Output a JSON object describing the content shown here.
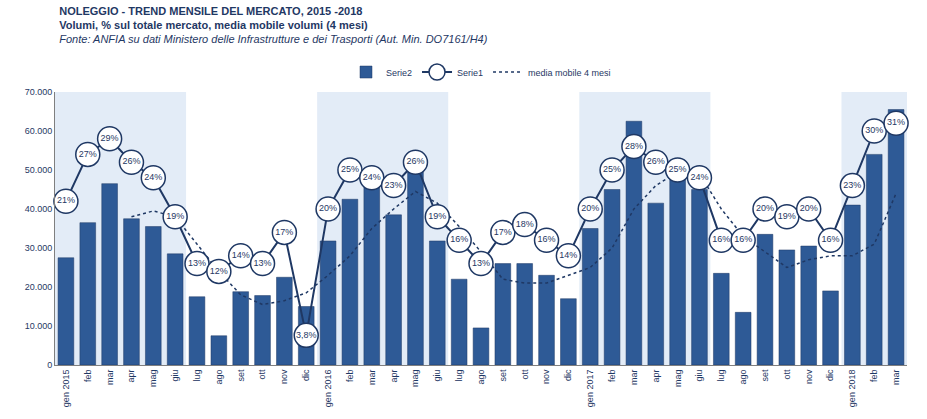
{
  "chart_data": {
    "type": "bar",
    "title": "NOLEGGIO - TREND MENSILE DEL MERCATO, 2015 -2018",
    "subtitle": "Volumi, % sul totale mercato, media mobile volumi (4 mesi)",
    "source": "Fonte: ANFIA su dati Ministero delle Infrastrutture e dei Trasporti (Aut. Min. DO7161/H4)",
    "categories": [
      "gen 2015",
      "feb",
      "mar",
      "apr",
      "mag",
      "giu",
      "lug",
      "ago",
      "set",
      "ott",
      "nov",
      "dic",
      "gen 2016",
      "feb",
      "mar",
      "apr",
      "mag",
      "giu",
      "lug",
      "ago",
      "set",
      "ott",
      "nov",
      "dic",
      "gen 2017",
      "feb",
      "mar",
      "apr",
      "mag",
      "giu",
      "lug",
      "ago",
      "set",
      "ott",
      "nov",
      "dic",
      "gen 2018",
      "feb",
      "mar"
    ],
    "ylim": [
      0,
      70000
    ],
    "yticks": [
      0,
      {
        "value": 10000,
        "label": "10.000"
      },
      {
        "value": 20000,
        "label": "20.000"
      },
      {
        "value": 30000,
        "label": "30.000"
      },
      {
        "value": 40000,
        "label": "40.000"
      },
      {
        "value": 50000,
        "label": "50.000"
      },
      {
        "value": 60000,
        "label": "60.000"
      },
      {
        "value": 70000,
        "label": "70.000"
      }
    ],
    "y2lim": [
      0,
      35
    ],
    "grid": false,
    "legend": "top",
    "data_labels": true,
    "series": [
      {
        "name": "Serie2",
        "type": "bar",
        "color": "#2e5a96",
        "values": [
          27500,
          36500,
          46500,
          37500,
          35500,
          28500,
          17500,
          7500,
          18800,
          17800,
          22500,
          15000,
          31800,
          42500,
          46000,
          38500,
          50000,
          31800,
          22000,
          9500,
          26000,
          26000,
          23000,
          17000,
          35000,
          45000,
          62500,
          41500,
          49000,
          45000,
          23500,
          13500,
          33500,
          29500,
          30500,
          19000,
          41000,
          54000,
          65500
        ]
      },
      {
        "name": "Serie1",
        "type": "line",
        "axis": "y2",
        "color": "#1f3864",
        "marker": "circle",
        "line_style": "solid",
        "values": [
          21,
          27,
          29,
          26,
          24,
          19,
          13,
          12,
          14,
          13,
          17,
          3.8,
          20,
          25,
          24,
          23,
          26,
          19,
          16,
          13,
          17,
          18,
          16,
          14,
          20,
          25,
          28,
          26,
          25,
          24,
          16,
          16,
          20,
          19,
          20,
          16,
          23,
          30,
          31
        ],
        "value_labels": [
          "21%",
          "27%",
          "29%",
          "26%",
          "24%",
          "19%",
          "13%",
          "12%",
          "14%",
          "13%",
          "17%",
          "3,8%",
          "20%",
          "25%",
          "24%",
          "23%",
          "26%",
          "19%",
          "16%",
          "13%",
          "17%",
          "18%",
          "16%",
          "14%",
          "20%",
          "25%",
          "28%",
          "26%",
          "25%",
          "24%",
          "16%",
          "16%",
          "20%",
          "19%",
          "20%",
          "16%",
          "23%",
          "30%",
          "31%"
        ]
      },
      {
        "name": "media mobile 4 mesi",
        "type": "line",
        "color": "#1f3864",
        "line_style": "dotted",
        "values": [
          null,
          null,
          null,
          38000,
          39500,
          38000,
          31000,
          24000,
          18000,
          15500,
          16500,
          18500,
          23000,
          28000,
          35000,
          40000,
          44500,
          41500,
          35500,
          29000,
          22000,
          21000,
          21000,
          23000,
          25000,
          30000,
          40000,
          46000,
          49500,
          49000,
          40000,
          33000,
          29000,
          25000,
          27000,
          28000,
          28000,
          31000,
          44000
        ]
      }
    ]
  }
}
